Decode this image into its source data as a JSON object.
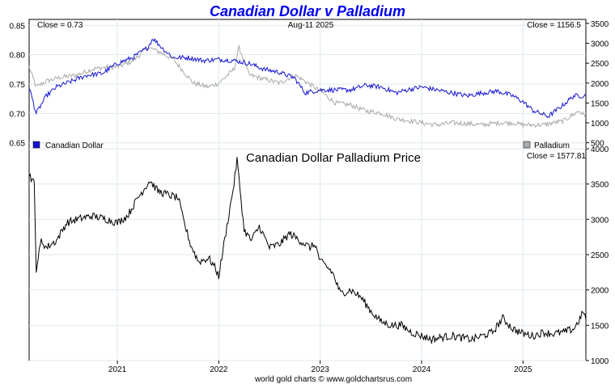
{
  "title": "Canadian Dollar v Palladium",
  "footer": "world gold charts © www.goldchartsrus.com",
  "colors": {
    "title": "#0000ee",
    "cad": "#1515d0",
    "pd": "#aaaaaa",
    "ratio": "#000000",
    "grid": "#dde8ee"
  },
  "x_ticks": [
    "2021",
    "2022",
    "2023",
    "2024",
    "2025"
  ],
  "chart_data": [
    {
      "type": "line",
      "title": "",
      "close_left": "Close = 0.73",
      "date": "Aug-11  2025",
      "close_right": "Close = 1156.5",
      "legend": {
        "left": "Canadian Dollar",
        "right": "Palladium",
        "placement": "bottom"
      },
      "y_left": {
        "range": [
          0.64,
          0.86
        ],
        "ticks": [
          "0.85",
          "0.80",
          "0.75",
          "0.70",
          "0.65"
        ]
      },
      "y_right": {
        "range": [
          350,
          3600
        ],
        "ticks": [
          "3500",
          "3000",
          "2500",
          "2000",
          "1500",
          "1000",
          "500"
        ]
      },
      "x_range": [
        2020.13,
        2025.62
      ],
      "series": [
        {
          "name": "Canadian Dollar",
          "axis": "left",
          "x": [
            2020.13,
            2020.2,
            2020.25,
            2020.3,
            2020.4,
            2020.55,
            2020.7,
            2020.85,
            2021.0,
            2021.15,
            2021.3,
            2021.35,
            2021.45,
            2021.55,
            2021.7,
            2021.85,
            2022.0,
            2022.15,
            2022.3,
            2022.45,
            2022.6,
            2022.75,
            2022.85,
            2023.0,
            2023.15,
            2023.3,
            2023.45,
            2023.6,
            2023.75,
            2023.85,
            2024.0,
            2024.15,
            2024.3,
            2024.45,
            2024.6,
            2024.75,
            2024.9,
            2025.0,
            2025.1,
            2025.25,
            2025.4,
            2025.5,
            2025.62
          ],
          "values": [
            0.745,
            0.7,
            0.715,
            0.73,
            0.745,
            0.755,
            0.765,
            0.768,
            0.785,
            0.795,
            0.812,
            0.828,
            0.81,
            0.795,
            0.795,
            0.79,
            0.792,
            0.79,
            0.785,
            0.775,
            0.77,
            0.76,
            0.735,
            0.74,
            0.74,
            0.74,
            0.748,
            0.745,
            0.735,
            0.74,
            0.745,
            0.74,
            0.735,
            0.73,
            0.735,
            0.738,
            0.73,
            0.72,
            0.705,
            0.695,
            0.715,
            0.73,
            0.73
          ]
        },
        {
          "name": "Palladium",
          "axis": "right",
          "x": [
            2020.13,
            2020.2,
            2020.3,
            2020.45,
            2020.6,
            2020.75,
            2020.9,
            2021.0,
            2021.15,
            2021.3,
            2021.4,
            2021.55,
            2021.65,
            2021.75,
            2021.9,
            2022.0,
            2022.15,
            2022.2,
            2022.3,
            2022.45,
            2022.6,
            2022.75,
            2022.85,
            2023.0,
            2023.15,
            2023.3,
            2023.45,
            2023.6,
            2023.75,
            2023.9,
            2024.0,
            2024.15,
            2024.3,
            2024.45,
            2024.6,
            2024.75,
            2024.9,
            2025.0,
            2025.2,
            2025.4,
            2025.55,
            2025.62
          ],
          "values": [
            2400,
            1900,
            2050,
            2150,
            2200,
            2350,
            2400,
            2400,
            2550,
            2900,
            2800,
            2600,
            2300,
            2000,
            1900,
            2000,
            2350,
            2900,
            2200,
            2100,
            2000,
            2200,
            2050,
            1800,
            1500,
            1450,
            1300,
            1250,
            1100,
            1050,
            1000,
            950,
            1000,
            980,
            950,
            1000,
            1000,
            950,
            950,
            1050,
            1300,
            1156.5
          ]
        }
      ]
    },
    {
      "type": "line",
      "title": "Canadian Dollar Palladium Price",
      "close_right": "Close = 1577.81",
      "y_right": {
        "range": [
          1000,
          4000
        ],
        "ticks": [
          "4000",
          "3500",
          "3000",
          "2500",
          "2000",
          "1500",
          "1000"
        ]
      },
      "x_range": [
        2020.13,
        2025.62
      ],
      "series": [
        {
          "name": "",
          "x": [
            2020.13,
            2020.18,
            2020.2,
            2020.25,
            2020.3,
            2020.4,
            2020.5,
            2020.6,
            2020.75,
            2020.9,
            2021.0,
            2021.1,
            2021.2,
            2021.32,
            2021.4,
            2021.5,
            2021.6,
            2021.65,
            2021.72,
            2021.8,
            2021.9,
            2021.95,
            2022.0,
            2022.08,
            2022.15,
            2022.18,
            2022.25,
            2022.32,
            2022.4,
            2022.5,
            2022.6,
            2022.7,
            2022.8,
            2022.9,
            2022.95,
            2023.0,
            2023.05,
            2023.12,
            2023.2,
            2023.3,
            2023.4,
            2023.5,
            2023.6,
            2023.7,
            2023.8,
            2023.9,
            2024.0,
            2024.1,
            2024.2,
            2024.3,
            2024.4,
            2024.5,
            2024.6,
            2024.7,
            2024.8,
            2024.9,
            2025.0,
            2025.1,
            2025.2,
            2025.3,
            2025.4,
            2025.5,
            2025.55,
            2025.6,
            2025.62
          ],
          "values": [
            3650,
            3500,
            2300,
            2700,
            2600,
            2700,
            2950,
            3000,
            3050,
            3000,
            2950,
            3050,
            3300,
            3550,
            3400,
            3350,
            3300,
            3000,
            2650,
            2400,
            2450,
            2350,
            2200,
            2900,
            3500,
            3850,
            2850,
            2700,
            2900,
            2600,
            2650,
            2800,
            2700,
            2600,
            2650,
            2400,
            2350,
            2250,
            1950,
            2000,
            1900,
            1700,
            1550,
            1500,
            1500,
            1400,
            1350,
            1300,
            1330,
            1350,
            1320,
            1300,
            1350,
            1400,
            1600,
            1450,
            1380,
            1350,
            1400,
            1380,
            1400,
            1450,
            1560,
            1700,
            1577.81
          ]
        }
      ]
    }
  ]
}
